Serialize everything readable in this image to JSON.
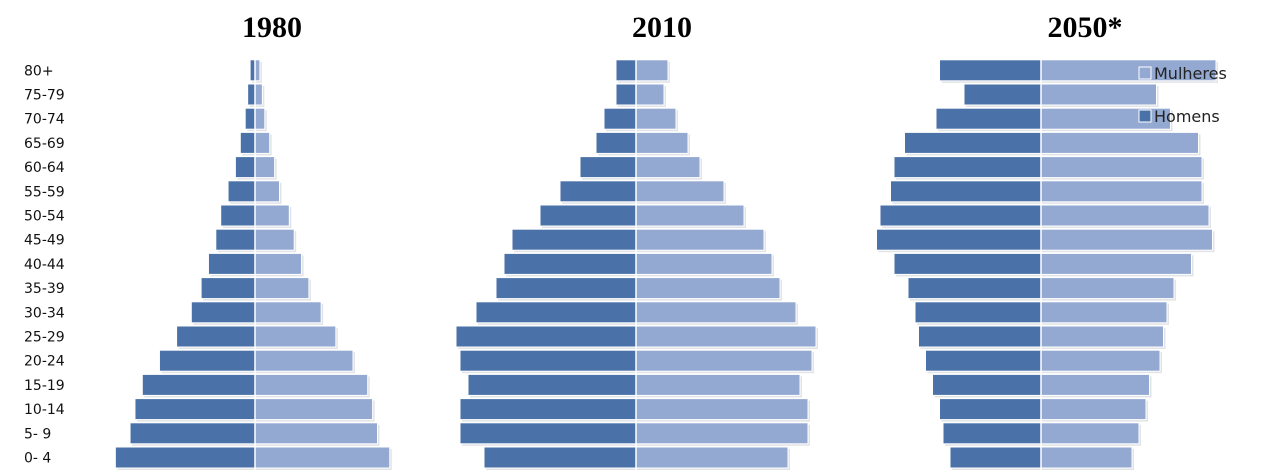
{
  "chart_data": {
    "type": "bar",
    "subtype": "population-pyramid",
    "age_groups": [
      "0- 4",
      "5- 9",
      "10-14",
      "15-19",
      "20-24",
      "25-29",
      "30-34",
      "35-39",
      "40-44",
      "45-49",
      "50-54",
      "55-59",
      "60-64",
      "65-69",
      "70-74",
      "75-79",
      "80+"
    ],
    "legend": {
      "placement": "top-right",
      "entries": [
        "Mulheres",
        "Homens"
      ]
    },
    "colors": {
      "Mulheres": "#93a9d1",
      "Homens": "#4a72a8"
    },
    "grid": false,
    "panels": [
      {
        "title": "1980",
        "series": [
          {
            "name": "Homens",
            "values": [
              5.7,
              5.1,
              4.9,
              4.6,
              3.9,
              3.2,
              2.6,
              2.2,
              1.9,
              1.6,
              1.4,
              1.1,
              0.8,
              0.6,
              0.4,
              0.3,
              0.2
            ]
          },
          {
            "name": "Mulheres",
            "values": [
              5.5,
              5.0,
              4.8,
              4.6,
              4.0,
              3.3,
              2.7,
              2.2,
              1.9,
              1.6,
              1.4,
              1.0,
              0.8,
              0.6,
              0.4,
              0.3,
              0.2
            ]
          }
        ]
      },
      {
        "title": "2010",
        "series": [
          {
            "name": "Homens",
            "values": [
              3.8,
              4.4,
              4.4,
              4.2,
              4.4,
              4.5,
              4.0,
              3.5,
              3.3,
              3.1,
              2.4,
              1.9,
              1.4,
              1.0,
              0.8,
              0.5,
              0.5
            ]
          },
          {
            "name": "Mulheres",
            "values": [
              3.8,
              4.3,
              4.3,
              4.1,
              4.4,
              4.5,
              4.0,
              3.6,
              3.4,
              3.2,
              2.7,
              2.2,
              1.6,
              1.3,
              1.0,
              0.7,
              0.8
            ]
          }
        ]
      },
      {
        "title": "2050*",
        "series": [
          {
            "name": "Homens",
            "values": [
              2.6,
              2.8,
              2.9,
              3.1,
              3.3,
              3.5,
              3.6,
              3.8,
              4.2,
              4.7,
              4.6,
              4.3,
              4.2,
              3.9,
              3.0,
              2.2,
              2.9
            ]
          },
          {
            "name": "Mulheres",
            "values": [
              2.6,
              2.8,
              3.0,
              3.1,
              3.4,
              3.5,
              3.6,
              3.8,
              4.3,
              4.9,
              4.8,
              4.6,
              4.6,
              4.5,
              3.7,
              3.3,
              5.0
            ]
          }
        ]
      }
    ]
  }
}
